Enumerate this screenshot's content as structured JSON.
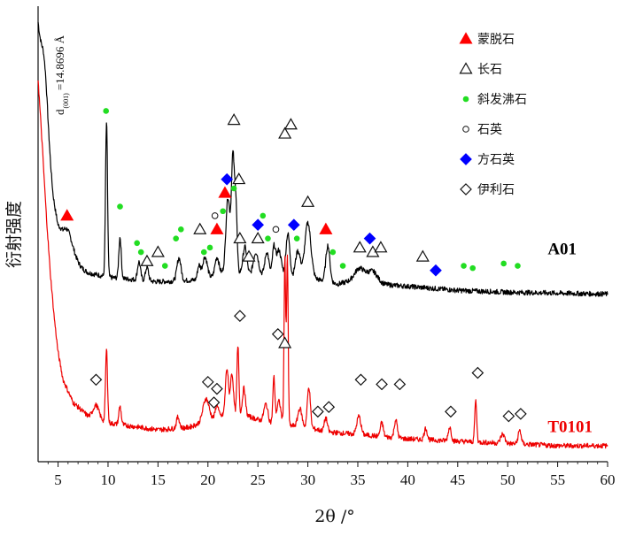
{
  "chart_data": {
    "type": "line",
    "title": "",
    "xlabel": "2θ /°",
    "ylabel": "衍射强度",
    "xlim": [
      3,
      60
    ],
    "ylim": [
      0,
      100
    ],
    "xticks": [
      5,
      10,
      15,
      20,
      25,
      30,
      35,
      40,
      45,
      50,
      55,
      60
    ],
    "grid": false,
    "annotation": {
      "main": "d",
      "sub": "(001)",
      "value": "=14.8696 Å"
    },
    "legend": {
      "placement": "top-right",
      "entries": [
        {
          "key": "smectite",
          "label": "蒙脱石",
          "marker": "triangle-filled",
          "color": "#ff0000"
        },
        {
          "key": "feldspar",
          "label": "长石",
          "marker": "triangle-open",
          "color": "#111111"
        },
        {
          "key": "clinoptilolite",
          "label": "斜发沸石",
          "marker": "circle-filled",
          "color": "#22dd22"
        },
        {
          "key": "quartz",
          "label": "石英",
          "marker": "circle-open",
          "color": "#111111"
        },
        {
          "key": "cristobalite",
          "label": "方石英",
          "marker": "diamond-filled",
          "color": "#0000ff"
        },
        {
          "key": "illite",
          "label": "伊利石",
          "marker": "diamond-open",
          "color": "#111111"
        }
      ]
    },
    "series": [
      {
        "name": "A01",
        "color": "#000000",
        "baseline": [
          [
            3.0,
            96
          ],
          [
            3.5,
            84
          ],
          [
            4.0,
            70
          ],
          [
            4.5,
            58
          ],
          [
            5.0,
            50
          ],
          [
            5.5,
            46
          ],
          [
            6.5,
            43.5
          ],
          [
            8.0,
            41.5
          ],
          [
            10.0,
            40.5
          ],
          [
            15.0,
            39.5
          ],
          [
            20.0,
            40
          ],
          [
            22.0,
            42
          ],
          [
            24.0,
            41
          ],
          [
            26.0,
            41
          ],
          [
            28.0,
            40
          ],
          [
            30.0,
            40.5
          ],
          [
            33.0,
            39
          ],
          [
            35.0,
            40
          ],
          [
            37.0,
            39
          ],
          [
            40.0,
            38.5
          ],
          [
            45.0,
            37.6
          ],
          [
            50.0,
            37.2
          ],
          [
            55.0,
            37
          ],
          [
            60.0,
            36.8
          ]
        ],
        "peaks": [
          [
            3.7,
            8,
            0.3
          ],
          [
            5.9,
            6,
            0.6
          ],
          [
            9.85,
            34,
            0.1
          ],
          [
            11.2,
            9,
            0.12
          ],
          [
            13.1,
            4,
            0.15
          ],
          [
            13.9,
            3,
            0.15
          ],
          [
            17.1,
            5,
            0.2
          ],
          [
            19.1,
            3,
            0.15
          ],
          [
            19.7,
            5,
            0.25
          ],
          [
            20.9,
            4,
            0.2
          ],
          [
            22.0,
            16,
            0.2
          ],
          [
            22.5,
            25,
            0.15
          ],
          [
            22.8,
            14,
            0.12
          ],
          [
            23.7,
            6,
            0.2
          ],
          [
            24.8,
            5,
            0.25
          ],
          [
            25.9,
            5,
            0.2
          ],
          [
            26.6,
            6,
            0.15
          ],
          [
            27.1,
            6,
            0.25
          ],
          [
            28.0,
            10,
            0.2
          ],
          [
            29.0,
            6,
            0.25
          ],
          [
            30.0,
            12,
            0.3
          ],
          [
            32.0,
            8,
            0.2
          ],
          [
            35.2,
            2.5,
            0.5
          ],
          [
            36.5,
            2.5,
            0.5
          ]
        ],
        "peak_markers": [
          {
            "x": 5.9,
            "y": 54,
            "type": "smectite"
          },
          {
            "x": 9.8,
            "y": 77,
            "type": "clinoptilolite"
          },
          {
            "x": 11.2,
            "y": 56,
            "type": "clinoptilolite"
          },
          {
            "x": 12.9,
            "y": 48,
            "type": "clinoptilolite"
          },
          {
            "x": 13.3,
            "y": 46,
            "type": "clinoptilolite"
          },
          {
            "x": 13.9,
            "y": 44,
            "type": "feldspar"
          },
          {
            "x": 15.0,
            "y": 46,
            "type": "feldspar"
          },
          {
            "x": 15.7,
            "y": 43,
            "type": "clinoptilolite"
          },
          {
            "x": 16.8,
            "y": 49,
            "type": "clinoptilolite"
          },
          {
            "x": 17.3,
            "y": 51,
            "type": "clinoptilolite"
          },
          {
            "x": 19.2,
            "y": 51,
            "type": "feldspar"
          },
          {
            "x": 19.6,
            "y": 46,
            "type": "clinoptilolite"
          },
          {
            "x": 20.2,
            "y": 47,
            "type": "clinoptilolite"
          },
          {
            "x": 20.7,
            "y": 54,
            "type": "quartz"
          },
          {
            "x": 20.9,
            "y": 51,
            "type": "smectite"
          },
          {
            "x": 21.5,
            "y": 55,
            "type": "clinoptilolite"
          },
          {
            "x": 21.7,
            "y": 59,
            "type": "smectite"
          },
          {
            "x": 21.9,
            "y": 62,
            "type": "cristobalite"
          },
          {
            "x": 22.6,
            "y": 75,
            "type": "feldspar"
          },
          {
            "x": 22.6,
            "y": 60,
            "type": "clinoptilolite"
          },
          {
            "x": 23.1,
            "y": 62,
            "type": "feldspar"
          },
          {
            "x": 23.2,
            "y": 49,
            "type": "feldspar"
          },
          {
            "x": 24.1,
            "y": 45,
            "type": "feldspar"
          },
          {
            "x": 25.0,
            "y": 52,
            "type": "cristobalite"
          },
          {
            "x": 25.0,
            "y": 49,
            "type": "feldspar"
          },
          {
            "x": 25.5,
            "y": 54,
            "type": "clinoptilolite"
          },
          {
            "x": 26.0,
            "y": 49,
            "type": "clinoptilolite"
          },
          {
            "x": 26.8,
            "y": 51,
            "type": "quartz"
          },
          {
            "x": 28.6,
            "y": 52,
            "type": "cristobalite"
          },
          {
            "x": 28.9,
            "y": 49,
            "type": "clinoptilolite"
          },
          {
            "x": 30.0,
            "y": 57,
            "type": "feldspar"
          },
          {
            "x": 31.8,
            "y": 51,
            "type": "smectite"
          },
          {
            "x": 32.5,
            "y": 46,
            "type": "clinoptilolite"
          },
          {
            "x": 33.5,
            "y": 43,
            "type": "clinoptilolite"
          },
          {
            "x": 35.2,
            "y": 47,
            "type": "feldspar"
          },
          {
            "x": 36.2,
            "y": 49,
            "type": "cristobalite"
          },
          {
            "x": 36.5,
            "y": 46,
            "type": "feldspar"
          },
          {
            "x": 37.3,
            "y": 47,
            "type": "feldspar"
          },
          {
            "x": 41.5,
            "y": 45,
            "type": "feldspar"
          },
          {
            "x": 42.8,
            "y": 42,
            "type": "cristobalite"
          },
          {
            "x": 45.6,
            "y": 43,
            "type": "clinoptilolite"
          },
          {
            "x": 46.5,
            "y": 42.5,
            "type": "clinoptilolite"
          },
          {
            "x": 49.6,
            "y": 43.5,
            "type": "clinoptilolite"
          },
          {
            "x": 51.0,
            "y": 43,
            "type": "clinoptilolite"
          }
        ]
      },
      {
        "name": "T0101",
        "color": "#ee0000",
        "baseline": [
          [
            3.0,
            84
          ],
          [
            3.4,
            70
          ],
          [
            3.8,
            55
          ],
          [
            4.2,
            42
          ],
          [
            4.6,
            32
          ],
          [
            5.0,
            24
          ],
          [
            5.5,
            18
          ],
          [
            6.5,
            13
          ],
          [
            8.0,
            10
          ],
          [
            10.0,
            8.5
          ],
          [
            15.0,
            7
          ],
          [
            18.0,
            7.5
          ],
          [
            20.0,
            9
          ],
          [
            22.0,
            10.5
          ],
          [
            24.0,
            10
          ],
          [
            26.0,
            8.5
          ],
          [
            28.0,
            8
          ],
          [
            30.0,
            7.5
          ],
          [
            32.0,
            6.5
          ],
          [
            35.0,
            6
          ],
          [
            40.0,
            5
          ],
          [
            45.0,
            4.5
          ],
          [
            50.0,
            4
          ],
          [
            55.0,
            3.5
          ],
          [
            60.0,
            3.5
          ]
        ],
        "peaks": [
          [
            8.8,
            3,
            0.3
          ],
          [
            9.85,
            16,
            0.1
          ],
          [
            11.2,
            4,
            0.12
          ],
          [
            17.0,
            2.5,
            0.15
          ],
          [
            19.8,
            5,
            0.3
          ],
          [
            20.9,
            3,
            0.15
          ],
          [
            21.9,
            10,
            0.15
          ],
          [
            22.4,
            9,
            0.15
          ],
          [
            23.0,
            15,
            0.1
          ],
          [
            23.6,
            6,
            0.15
          ],
          [
            25.8,
            4,
            0.2
          ],
          [
            26.6,
            10,
            0.1
          ],
          [
            27.1,
            5,
            0.2
          ],
          [
            27.7,
            37,
            0.08
          ],
          [
            27.95,
            37,
            0.08
          ],
          [
            29.2,
            4,
            0.2
          ],
          [
            30.1,
            9,
            0.15
          ],
          [
            31.8,
            3,
            0.15
          ],
          [
            35.1,
            4,
            0.2
          ],
          [
            37.4,
            3,
            0.15
          ],
          [
            38.8,
            4,
            0.15
          ],
          [
            41.8,
            2.5,
            0.15
          ],
          [
            44.2,
            3,
            0.15
          ],
          [
            46.8,
            9,
            0.1
          ],
          [
            49.5,
            2,
            0.2
          ],
          [
            51.2,
            3,
            0.15
          ]
        ],
        "peak_markers": [
          {
            "x": 8.8,
            "y": 18,
            "type": "illite"
          },
          {
            "x": 20.0,
            "y": 17.5,
            "type": "illite"
          },
          {
            "x": 20.9,
            "y": 16,
            "type": "illite"
          },
          {
            "x": 20.6,
            "y": 13,
            "type": "illite"
          },
          {
            "x": 23.2,
            "y": 32,
            "type": "illite"
          },
          {
            "x": 27.0,
            "y": 28,
            "type": "illite"
          },
          {
            "x": 27.7,
            "y": 26,
            "type": "feldspar"
          },
          {
            "x": 27.7,
            "y": 72,
            "type": "feldspar"
          },
          {
            "x": 28.3,
            "y": 74,
            "type": "feldspar"
          },
          {
            "x": 31.0,
            "y": 11,
            "type": "illite"
          },
          {
            "x": 32.1,
            "y": 12,
            "type": "illite"
          },
          {
            "x": 35.3,
            "y": 18,
            "type": "illite"
          },
          {
            "x": 37.4,
            "y": 17,
            "type": "illite"
          },
          {
            "x": 39.2,
            "y": 17,
            "type": "illite"
          },
          {
            "x": 44.3,
            "y": 11,
            "type": "illite"
          },
          {
            "x": 47.0,
            "y": 19.5,
            "type": "illite"
          },
          {
            "x": 50.1,
            "y": 10,
            "type": "illite"
          },
          {
            "x": 51.3,
            "y": 10.5,
            "type": "illite"
          }
        ]
      }
    ]
  }
}
